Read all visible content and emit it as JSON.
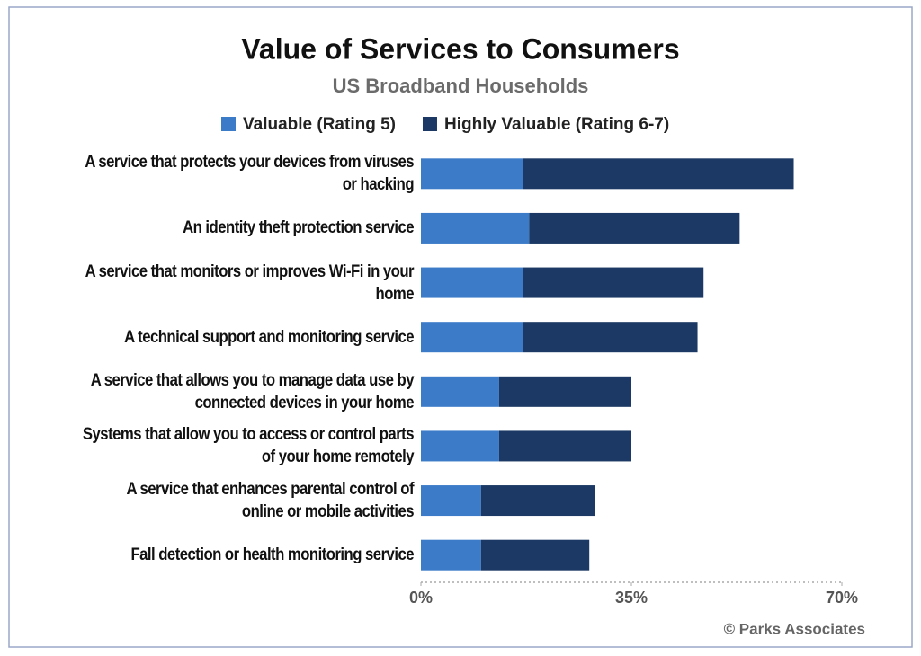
{
  "chart_data": {
    "type": "stacked-bar-horizontal",
    "title": "Value of Services to Consumers",
    "subtitle": "US Broadband Households",
    "categories": [
      "A service that protects your devices from viruses or hacking",
      "An identity theft protection service",
      "A service that monitors or improves Wi-Fi in your home",
      "A technical support and monitoring service",
      "A service that allows you to manage data use by connected devices in your home",
      "Systems that allow you to access or control parts of your home remotely",
      "A service that enhances parental control of online or mobile activities",
      "Fall detection or health monitoring service"
    ],
    "series": [
      {
        "name": "Valuable (Rating 5)",
        "color": "#3b7bc8",
        "values": [
          17,
          18,
          17,
          17,
          13,
          13,
          10,
          10
        ]
      },
      {
        "name": "Highly Valuable (Rating 6-7)",
        "color": "#1b3964",
        "values": [
          45,
          35,
          30,
          29,
          22,
          22,
          19,
          18
        ]
      }
    ],
    "xlim": [
      0,
      70
    ],
    "xticks": [
      {
        "value": 0,
        "label": "0%"
      },
      {
        "value": 35,
        "label": "35%"
      },
      {
        "value": 70,
        "label": "70%"
      }
    ],
    "legend": "top",
    "source": "© Parks Associates"
  }
}
